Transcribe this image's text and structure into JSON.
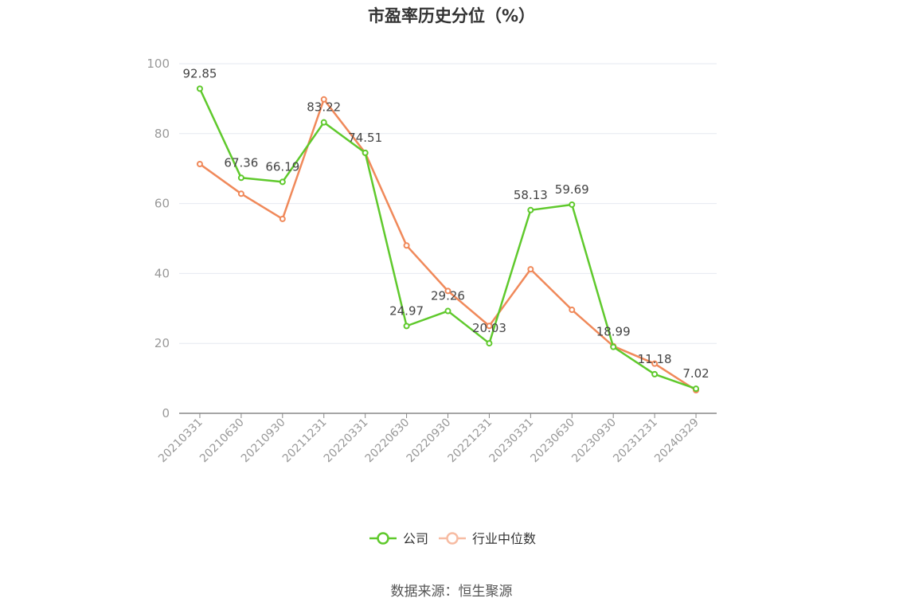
{
  "chart_data": {
    "type": "line",
    "title": "市盈率历史分位（%）",
    "categories": [
      "20210331",
      "20210630",
      "20210930",
      "20211231",
      "20220331",
      "20220630",
      "20220930",
      "20221231",
      "20230331",
      "20230630",
      "20230930",
      "20231231",
      "20240329"
    ],
    "ylim": [
      0,
      100
    ],
    "yticks": [
      0,
      20,
      40,
      60,
      80,
      100
    ],
    "grid": true,
    "legend_position": "bottom-center",
    "series": [
      {
        "name": "公司",
        "color": "#5fc92c",
        "values": [
          92.85,
          67.36,
          66.19,
          83.22,
          74.51,
          24.97,
          29.26,
          20.03,
          58.13,
          59.69,
          18.99,
          11.18,
          7.02
        ],
        "data_labels": [
          "92.85",
          "67.36",
          "66.19",
          "83.22",
          "74.51",
          "24.97",
          "29.26",
          "20.03",
          "58.13",
          "59.69",
          "18.99",
          "11.18",
          "7.02"
        ]
      },
      {
        "name": "行业中位数",
        "color": "#f0895a",
        "legend_color": "#f7bca3",
        "values": [
          71.3,
          62.8,
          55.6,
          89.8,
          74.5,
          48.0,
          35.0,
          25.0,
          41.2,
          29.6,
          19.2,
          14.2,
          6.6
        ]
      }
    ]
  },
  "source": "数据来源：恒生聚源"
}
